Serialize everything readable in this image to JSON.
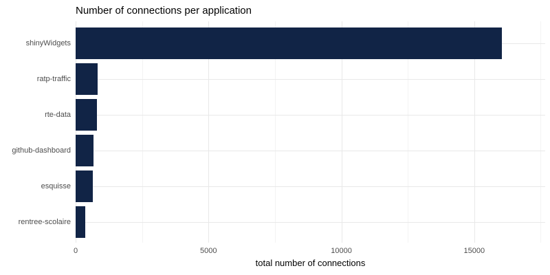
{
  "chart_data": {
    "type": "bar",
    "orientation": "horizontal",
    "title": "Number of connections per application",
    "xlabel": "total number of connections",
    "ylabel": "",
    "categories": [
      "shinyWidgets",
      "ratp-traffic",
      "rte-data",
      "github-dashboard",
      "esquisse",
      "rentree-scolaire"
    ],
    "values": [
      16050,
      830,
      800,
      670,
      650,
      360
    ],
    "x_ticks": [
      0,
      5000,
      10000,
      15000
    ],
    "x_minor_gridlines": [
      2500,
      7500,
      12500,
      17500
    ],
    "xlim": [
      0,
      17670
    ],
    "grid": "on",
    "legend": "none",
    "colors": {
      "bar_fill": "#112446",
      "major_gridline": "#e8e8e8",
      "minor_gridline": "#f3f3f3",
      "axis_text": "#4d4d4d",
      "title_text": "#000000",
      "background": "#ffffff"
    }
  }
}
